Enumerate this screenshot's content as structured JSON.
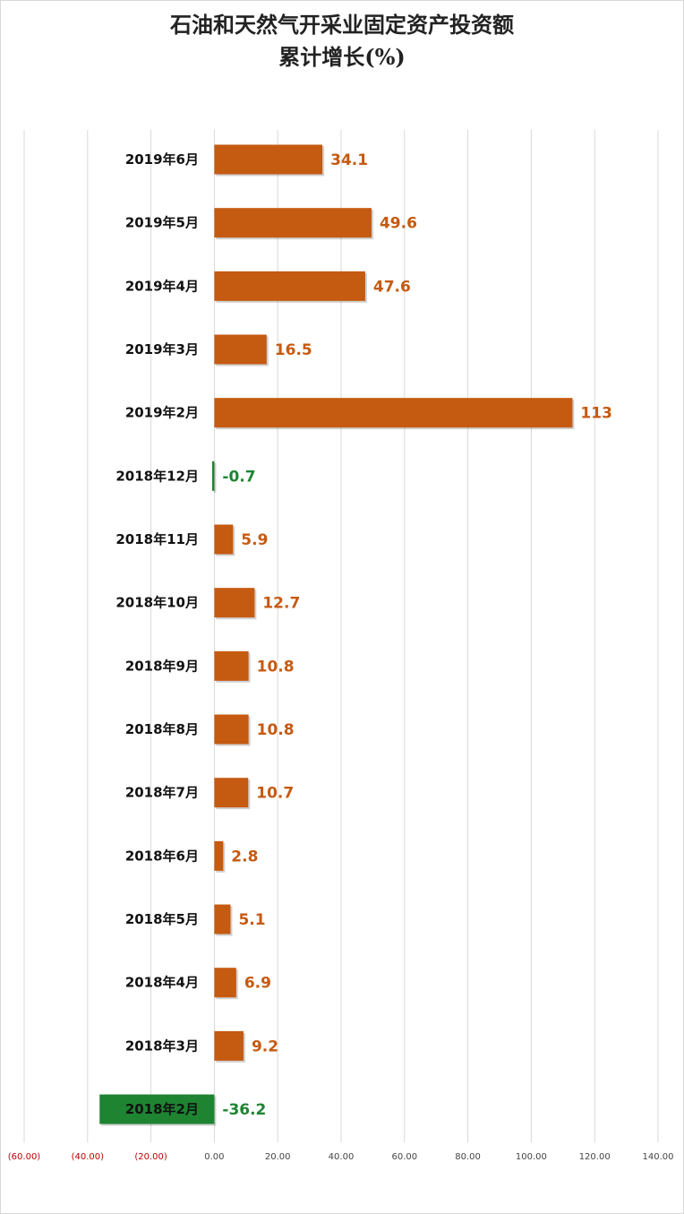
{
  "chart_data": {
    "type": "bar",
    "orientation": "horizontal",
    "title": [
      "石油和天然气开采业固定资产投资额",
      "累计增长(%)"
    ],
    "categories": [
      "2019年6月",
      "2019年5月",
      "2019年4月",
      "2019年3月",
      "2019年2月",
      "2018年12月",
      "2018年11月",
      "2018年10月",
      "2018年9月",
      "2018年8月",
      "2018年7月",
      "2018年6月",
      "2018年5月",
      "2018年4月",
      "2018年3月",
      "2018年2月"
    ],
    "values": [
      34.1,
      49.6,
      47.6,
      16.5,
      113,
      -0.7,
      5.9,
      12.7,
      10.8,
      10.8,
      10.7,
      2.8,
      5.1,
      6.9,
      9.2,
      -36.2
    ],
    "value_labels": [
      "34.1",
      "49.6",
      "47.6",
      "16.5",
      "113",
      "-0.7",
      "5.9",
      "12.7",
      "10.8",
      "10.8",
      "10.7",
      "2.8",
      "5.1",
      "6.9",
      "9.2",
      "-36.2"
    ],
    "xlim": [
      -60,
      140
    ],
    "xticks": [
      -60,
      -40,
      -20,
      0,
      20,
      40,
      60,
      80,
      100,
      120,
      140
    ],
    "xtick_labels": [
      "(60.00)",
      "(40.00)",
      "(20.00)",
      "0.00",
      "20.00",
      "40.00",
      "60.00",
      "80.00",
      "100.00",
      "120.00",
      "140.00"
    ],
    "xlabel": "",
    "ylabel": "",
    "grid": "vertical",
    "legend": "none",
    "colors": {
      "positive": "#c55a11",
      "negative": "#1e8432",
      "negative_tick": "#c00000",
      "positive_tick": "#444444",
      "gridline": "#d9d9d9",
      "category_text": "#111111"
    }
  }
}
